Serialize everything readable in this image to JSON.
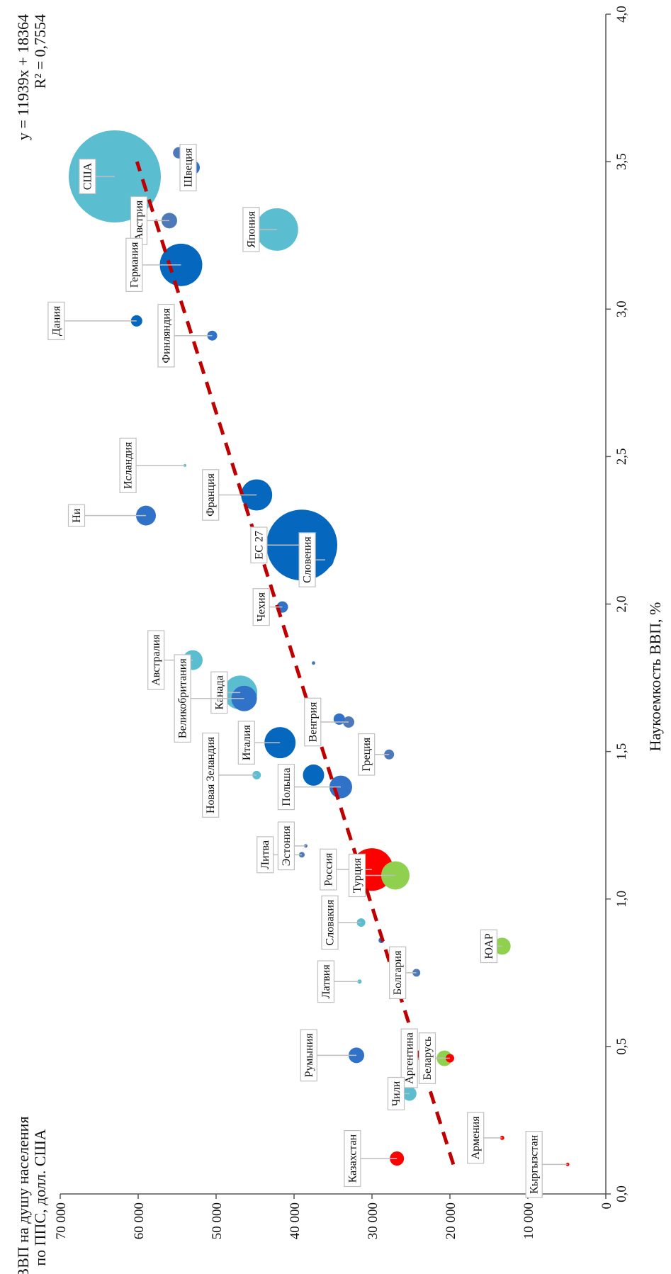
{
  "chart_data": {
    "type": "scatter",
    "subtype": "bubble",
    "orientation": "rotated-90-clockwise",
    "ylabel_lines": [
      "ВВП на душу населения",
      "по ППС, долл. США"
    ],
    "xlabel": "Наукоемкость ВВП, %",
    "equation": "y = 11939x + 18364",
    "r_squared": "R² = 0,7554",
    "xlim": [
      0,
      4
    ],
    "ylim": [
      0,
      70000
    ],
    "x_ticks": [
      0,
      0.5,
      1,
      1.5,
      2,
      2.5,
      3,
      3.5,
      4
    ],
    "x_tick_labels": [
      "0,0",
      "0,5",
      "1,0",
      "1,5",
      "2,0",
      "2,5",
      "3,0",
      "3,5",
      "4,0"
    ],
    "y_ticks": [
      0,
      10000,
      20000,
      30000,
      40000,
      50000,
      60000,
      70000
    ],
    "y_tick_labels": [
      "0",
      "10 000",
      "20 000",
      "30 000",
      "40 000",
      "50 000",
      "60 000",
      "70 000"
    ],
    "trendline": {
      "style": "dashed",
      "color": "#c00000",
      "slope": 11939,
      "intercept": 18364,
      "x_range": [
        0.1,
        3.5
      ]
    },
    "colors": {
      "eu_dark": "#0567be",
      "eu_mid": "#2f72c8",
      "eu_grey": "#4e79b8",
      "teal": "#5bbdd0",
      "green": "#8fd14f",
      "red": "#ff0000"
    },
    "points": [
      {
        "name": "США",
        "x": 3.45,
        "y": 63000,
        "r": 65,
        "color": "#5bbdd0",
        "label": {
          "dx": 18,
          "dy": 11.5
        }
      },
      {
        "name": "Швеция",
        "x": 3.48,
        "y": 53000,
        "r": 10,
        "color": "#2f72c8",
        "label": {
          "dx": 3.4,
          "dy": 3.5
        }
      },
      {
        "name": "",
        "x": 3.53,
        "y": 54800,
        "r": 8,
        "color": "#4e79b8"
      },
      {
        "name": "Австрия",
        "x": 3.3,
        "y": 56000,
        "r": 11,
        "color": "#4e79b8",
        "label": {
          "dx": 20,
          "dy": 5.3
        }
      },
      {
        "name": "Германия",
        "x": 3.15,
        "y": 54500,
        "r": 30,
        "color": "#0567be",
        "label": {
          "dx": 30.5,
          "dy": 7.5
        }
      },
      {
        "name": "Япония",
        "x": 3.27,
        "y": 42200,
        "r": 30,
        "color": "#5bbdd0",
        "label": {
          "dx": 17,
          "dy": 7
        }
      },
      {
        "name": "Дания",
        "x": 2.96,
        "y": 60200,
        "r": 8,
        "color": "#0567be",
        "label": {
          "dx": 52,
          "dy": 4.3
        }
      },
      {
        "name": "Финляндия",
        "x": 2.91,
        "y": 50500,
        "r": 7,
        "color": "#2f72c8",
        "label": {
          "dx": 30,
          "dy": 5
        }
      },
      {
        "name": "Ни",
        "x": 2.3,
        "y": 59000,
        "r": 14,
        "color": "#2f72c8",
        "label": {
          "dx": 45,
          "dy": 1
        }
      },
      {
        "name": "Исландия",
        "x": 2.47,
        "y": 54000,
        "r": 2,
        "color": "#5bbdd0",
        "label": {
          "dx": 37,
          "dy": 4.8
        }
      },
      {
        "name": "Франция",
        "x": 2.37,
        "y": 44800,
        "r": 22,
        "color": "#0567be",
        "label": {
          "dx": 30,
          "dy": 4.2
        }
      },
      {
        "name": "ЕС 27",
        "x": 2.2,
        "y": 39000,
        "r": 50,
        "color": "#0567be",
        "label": {
          "dx": 28,
          "dy": 1.8
        }
      },
      {
        "name": "Словения",
        "x": 2.15,
        "y": 36000,
        "r": 12,
        "color": "#0567be",
        "label": {
          "dx": 12,
          "dy": 5.3
        }
      },
      {
        "name": "Чехия",
        "x": 1.99,
        "y": 41500,
        "r": 8,
        "color": "#2f72c8",
        "label": {
          "dx": 14,
          "dy": 3.3
        }
      },
      {
        "name": "Австралия",
        "x": 1.81,
        "y": 53000,
        "r": 14,
        "color": "#5bbdd0",
        "label": {
          "dx": 24,
          "dy": 5
        }
      },
      {
        "name": "Канада",
        "x": 1.7,
        "y": 46900,
        "r": 24,
        "color": "#5bbdd0",
        "label": {
          "dx": 14,
          "dy": 3.4
        }
      },
      {
        "name": "Великобритания",
        "x": 1.68,
        "y": 46400,
        "r": 18,
        "color": "#2f72c8",
        "label": {
          "dx": 40,
          "dy": 7.7
        }
      },
      {
        "name": "",
        "x": 1.8,
        "y": 37500,
        "r": 2.5,
        "color": "#4e79b8"
      },
      {
        "name": "Венгрия",
        "x": 1.6,
        "y": 33000,
        "r": 8,
        "color": "#4e79b8",
        "label": {
          "dx": 23.5,
          "dy": 4
        }
      },
      {
        "name": "",
        "x": 1.61,
        "y": 34200,
        "r": 8,
        "color": "#2f72c8"
      },
      {
        "name": "Италия",
        "x": 1.53,
        "y": 41800,
        "r": 22,
        "color": "#0567be",
        "label": {
          "dx": 22,
          "dy": 3.2
        }
      },
      {
        "name": "Греция",
        "x": 1.49,
        "y": 27800,
        "r": 7,
        "color": "#4e79b8",
        "label": {
          "dx": 15,
          "dy": 3.2
        }
      },
      {
        "name": "Новая Зеландия",
        "x": 1.42,
        "y": 44800,
        "r": 6,
        "color": "#5bbdd0",
        "label": {
          "dx": 30,
          "dy": 7.5
        }
      },
      {
        "name": "",
        "x": 1.42,
        "y": 37500,
        "r": 15,
        "color": "#0567be"
      },
      {
        "name": "Польша",
        "x": 1.38,
        "y": 34000,
        "r": 16,
        "color": "#2f72c8",
        "label": {
          "dx": 35.5,
          "dy": 3.4
        }
      },
      {
        "name": "Литва",
        "x": 1.15,
        "y": 39000,
        "r": 4,
        "color": "#4e79b8",
        "label": {
          "dx": 24,
          "dy": 2.3
        }
      },
      {
        "name": "Эстония",
        "x": 1.18,
        "y": 38500,
        "r": 2.5,
        "color": "#4e79b8",
        "label": {
          "dx": 13,
          "dy": 3.5
        }
      },
      {
        "name": "Россия",
        "x": 1.1,
        "y": 30000,
        "r": 30,
        "color": "#ff0000",
        "label": {
          "dx": 28.5,
          "dy": 3.2
        }
      },
      {
        "name": "Турция",
        "x": 1.08,
        "y": 27000,
        "r": 20,
        "color": "#8fd14f",
        "label": {
          "dx": 25,
          "dy": 3.2
        }
      },
      {
        "name": "Словакия",
        "x": 0.92,
        "y": 31400,
        "r": 6,
        "color": "#5bbdd0",
        "label": {
          "dx": 20.5,
          "dy": 4.3
        }
      },
      {
        "name": "",
        "x": 0.86,
        "y": 28800,
        "r": 4,
        "color": "#2f72c8"
      },
      {
        "name": "Болгария",
        "x": 0.75,
        "y": 24300,
        "r": 5.5,
        "color": "#4e79b8",
        "label": {
          "dx": 12.5,
          "dy": 4.2
        }
      },
      {
        "name": "ЮАР",
        "x": 0.84,
        "y": 13300,
        "r": 12,
        "color": "#8fd14f",
        "label": {
          "dx": 9,
          "dy": 2.2
        }
      },
      {
        "name": "Латвия",
        "x": 0.72,
        "y": 31600,
        "r": 3,
        "color": "#5bbdd0",
        "label": {
          "dx": 22,
          "dy": 3.5
        }
      },
      {
        "name": "Румыния",
        "x": 0.47,
        "y": 32000,
        "r": 11,
        "color": "#2f72c8",
        "label": {
          "dx": 31,
          "dy": 4.1
        }
      },
      {
        "name": "Аргентина",
        "x": 0.46,
        "y": 20700,
        "r": 11,
        "color": "#8fd14f",
        "label": {
          "dx": 23,
          "dy": 5
        }
      },
      {
        "name": "Беларусь",
        "x": 0.46,
        "y": 20000,
        "r": 6,
        "color": "#ff0000",
        "label": {
          "dx": 15,
          "dy": 4.3
        }
      },
      {
        "name": "Чили",
        "x": 0.34,
        "y": 25200,
        "r": 10,
        "color": "#5bbdd0",
        "label": {
          "dx": 9,
          "dy": 2.6
        }
      },
      {
        "name": "Армения",
        "x": 0.19,
        "y": 13300,
        "r": 3,
        "color": "#ff0000",
        "label": {
          "dx": 17.5,
          "dy": 4.3
        }
      },
      {
        "name": "Казахстан",
        "x": 0.12,
        "y": 26800,
        "r": 10,
        "color": "#ff0000",
        "label": {
          "dx": 29,
          "dy": 5
        }
      },
      {
        "name": "Кыргызстан",
        "x": 0.1,
        "y": 4900,
        "r": 2.5,
        "color": "#ff0000",
        "label": {
          "dx": 22,
          "dy": 5.7
        }
      }
    ]
  }
}
